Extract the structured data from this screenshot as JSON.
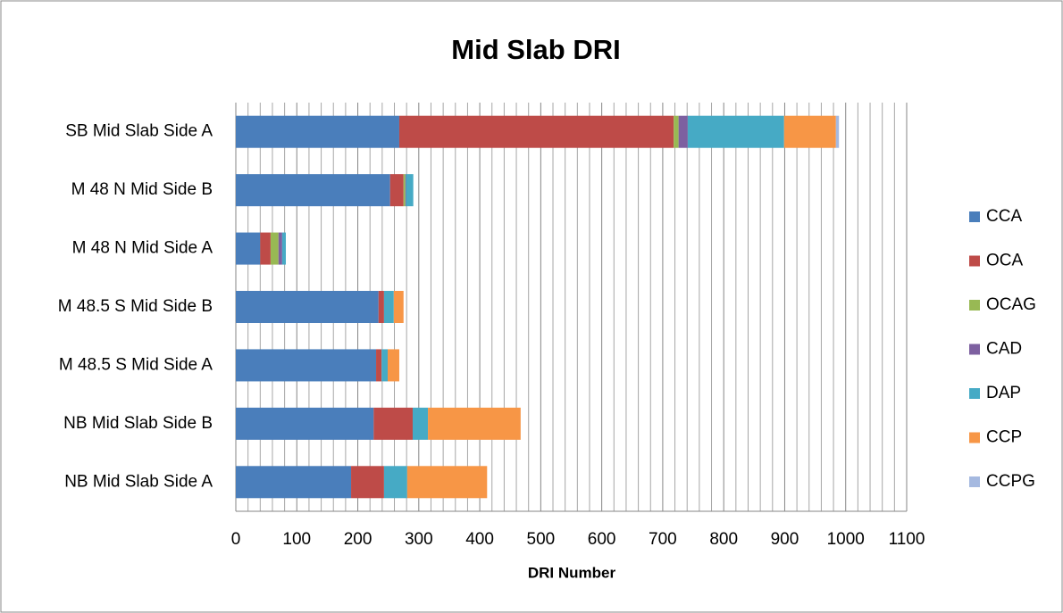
{
  "chart_data": {
    "type": "stacked-bar-horizontal",
    "title": "Mid Slab DRI",
    "x_label": "DRI Number",
    "categories": [
      "NB Mid Slab Side A",
      "NB Mid Slab Side B",
      "M 48.5 S Mid Side A",
      "M 48.5 S Mid Side B",
      "M 48 N Mid Side A",
      "M 48 N Mid Side B",
      "SB Mid Slab Side A"
    ],
    "series": [
      {
        "name": "CCA",
        "color": "#4a7ebb",
        "values": [
          189,
          226,
          230,
          234,
          40,
          253,
          268
        ]
      },
      {
        "name": "OCA",
        "color": "#be4b48",
        "values": [
          54,
          64,
          9,
          9,
          17,
          22,
          450
        ]
      },
      {
        "name": "OCAG",
        "color": "#98b954",
        "values": [
          0,
          0,
          0,
          0,
          13,
          3,
          8
        ]
      },
      {
        "name": "CAD",
        "color": "#7d60a0",
        "values": [
          0,
          0,
          0,
          0,
          6,
          1,
          15
        ]
      },
      {
        "name": "DAP",
        "color": "#46aac5",
        "values": [
          38,
          25,
          10,
          16,
          6,
          12,
          158
        ]
      },
      {
        "name": "CCP",
        "color": "#f79646",
        "values": [
          131,
          152,
          19,
          16,
          0,
          0,
          85
        ]
      },
      {
        "name": "CCPG",
        "color": "#a5b9e0",
        "values": [
          0,
          0,
          0,
          0,
          0,
          0,
          5
        ]
      }
    ],
    "xlim": [
      0,
      1100
    ],
    "xticks": [
      0,
      100,
      200,
      300,
      400,
      500,
      600,
      700,
      800,
      900,
      1000,
      1100
    ],
    "xminorticks": [
      20,
      40,
      60,
      80,
      120,
      140,
      160,
      180,
      220,
      240,
      260,
      280,
      320,
      340,
      360,
      380,
      420,
      440,
      460,
      480,
      520,
      540,
      560,
      580,
      620,
      640,
      660,
      680,
      720,
      740,
      760,
      780,
      820,
      840,
      860,
      880,
      920,
      940,
      960,
      980,
      1020,
      1040,
      1060,
      1080
    ],
    "grid": true,
    "legend": "right"
  }
}
